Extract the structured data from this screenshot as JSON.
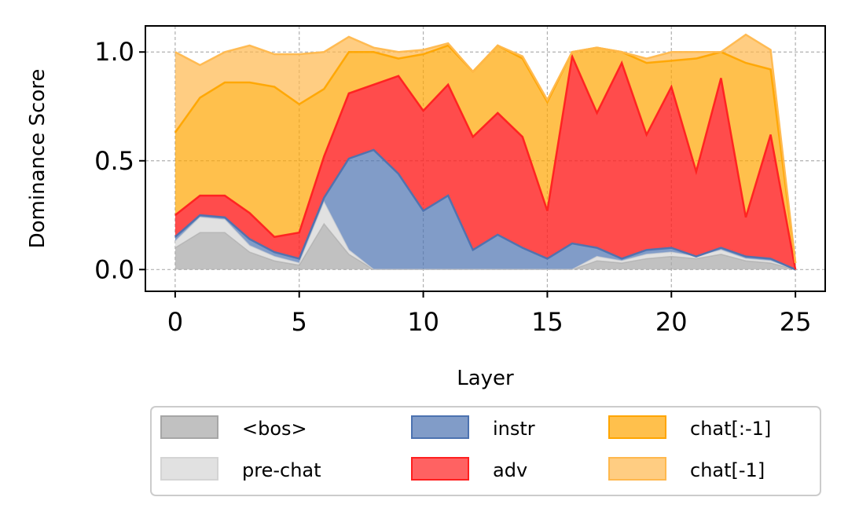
{
  "chart_data": {
    "type": "area",
    "xlabel": "Layer",
    "ylabel": "Dominance Score",
    "xlim": [
      -1.2,
      26.2
    ],
    "ylim": [
      -0.1,
      1.12
    ],
    "xticks": [
      "0",
      "5",
      "10",
      "15",
      "20",
      "25"
    ],
    "yticks": [
      "0.0",
      "0.5",
      "1.0"
    ],
    "grid": true,
    "legend_position": "bottom",
    "x": [
      0,
      1,
      2,
      3,
      4,
      5,
      6,
      7,
      8,
      9,
      10,
      11,
      12,
      13,
      14,
      15,
      16,
      17,
      18,
      19,
      20,
      21,
      22,
      23,
      24,
      25
    ],
    "series": [
      {
        "name": "<bos>",
        "color": "#a6a6a6",
        "values": [
          0.1,
          0.17,
          0.17,
          0.08,
          0.04,
          0.02,
          0.21,
          0.07,
          0.0,
          0.0,
          0.0,
          0.0,
          0.0,
          0.0,
          0.0,
          0.0,
          0.0,
          0.04,
          0.03,
          0.05,
          0.06,
          0.05,
          0.07,
          0.04,
          0.03,
          0.0
        ]
      },
      {
        "name": "pre-chat",
        "color": "#d4d4d4",
        "values": [
          0.03,
          0.07,
          0.06,
          0.03,
          0.02,
          0.01,
          0.1,
          0.02,
          0.0,
          0.0,
          0.0,
          0.0,
          0.0,
          0.0,
          0.0,
          0.0,
          0.0,
          0.02,
          0.01,
          0.02,
          0.02,
          0.01,
          0.02,
          0.01,
          0.01,
          0.0
        ]
      },
      {
        "name": "instr",
        "color": "#4c72b0",
        "values": [
          0.02,
          0.01,
          0.01,
          0.03,
          0.02,
          0.02,
          0.02,
          0.42,
          0.55,
          0.44,
          0.27,
          0.34,
          0.09,
          0.16,
          0.1,
          0.05,
          0.12,
          0.04,
          0.01,
          0.02,
          0.02,
          0.0,
          0.01,
          0.01,
          0.01,
          0.0
        ]
      },
      {
        "name": "adv",
        "color": "#ff1f1f",
        "values": [
          0.1,
          0.09,
          0.1,
          0.12,
          0.07,
          0.12,
          0.19,
          0.3,
          0.3,
          0.45,
          0.46,
          0.51,
          0.52,
          0.56,
          0.51,
          0.22,
          0.86,
          0.62,
          0.9,
          0.53,
          0.74,
          0.39,
          0.78,
          0.18,
          0.57,
          0.0
        ]
      },
      {
        "name": "chat[:-1]",
        "color": "#ffa500",
        "values": [
          0.38,
          0.45,
          0.52,
          0.6,
          0.69,
          0.59,
          0.31,
          0.19,
          0.15,
          0.08,
          0.26,
          0.18,
          0.3,
          0.31,
          0.36,
          0.5,
          0.02,
          0.3,
          0.05,
          0.33,
          0.12,
          0.52,
          0.12,
          0.71,
          0.3,
          0.03
        ]
      },
      {
        "name": "chat[-1]",
        "color": "#ffb84d",
        "values": [
          0.37,
          0.15,
          0.14,
          0.17,
          0.15,
          0.23,
          0.17,
          0.07,
          0.02,
          0.03,
          0.02,
          0.01,
          0.0,
          0.0,
          0.01,
          0.01,
          0.0,
          0.0,
          0.0,
          0.02,
          0.04,
          0.03,
          0.0,
          0.13,
          0.09,
          0.0
        ]
      }
    ]
  },
  "legend": {
    "items": [
      {
        "label": "<bos>",
        "color": "#a6a6a6"
      },
      {
        "label": "pre-chat",
        "color": "#d4d4d4"
      },
      {
        "label": "instr",
        "color": "#4c72b0"
      },
      {
        "label": "adv",
        "color": "#ff1f1f"
      },
      {
        "label": "chat[:-1]",
        "color": "#ffa500"
      },
      {
        "label": "chat[-1]",
        "color": "#ffb84d"
      }
    ]
  }
}
